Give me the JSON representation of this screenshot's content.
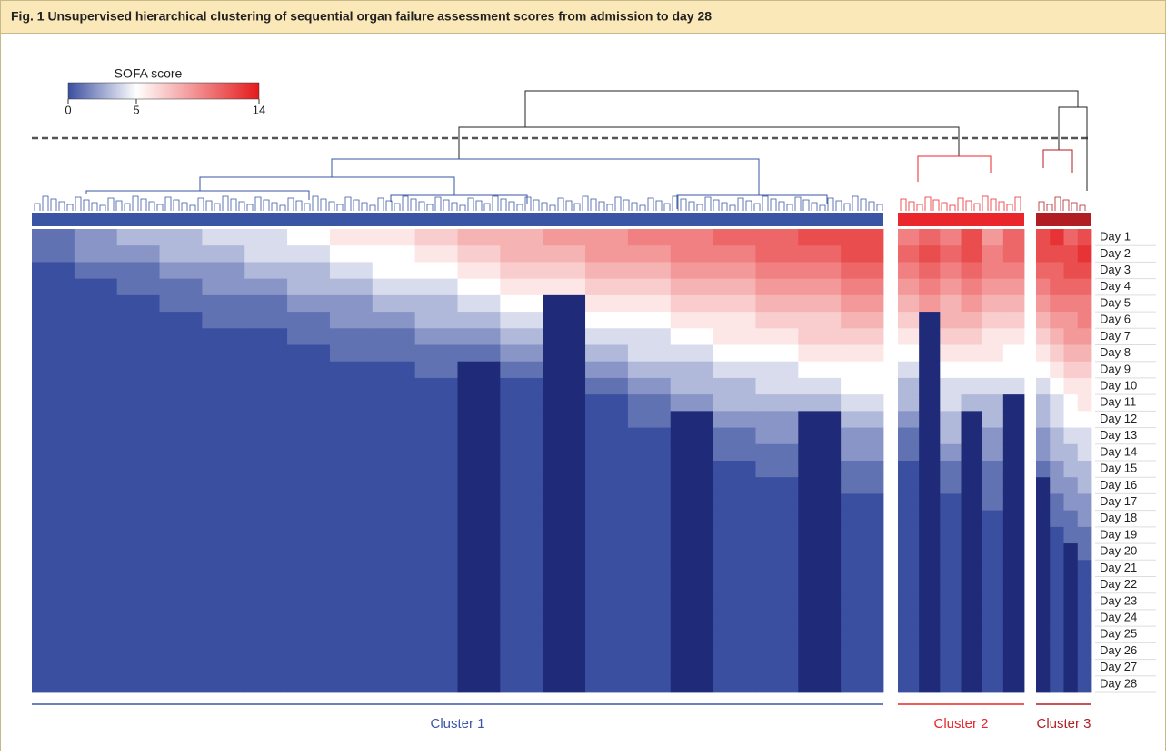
{
  "chart_data": {
    "type": "heatmap",
    "title": "Fig. 1 Unsupervised hierarchical clustering of sequential organ failure assessment scores from admission to day 28",
    "legend": {
      "title": "SOFA score",
      "range": [
        0,
        14
      ],
      "ticks": [
        0,
        5,
        14
      ],
      "colors": [
        "#3a4fa0",
        "#ffffff",
        "#e41a1c"
      ]
    },
    "missing_color": "#1f2a78",
    "rows": [
      "Day 1",
      "Day 2",
      "Day 3",
      "Day 4",
      "Day 5",
      "Day 6",
      "Day 7",
      "Day 8",
      "Day 9",
      "Day 10",
      "Day 11",
      "Day 12",
      "Day 13",
      "Day 14",
      "Day 15",
      "Day 16",
      "Day 17",
      "Day 18",
      "Day 19",
      "Day 20",
      "Day 21",
      "Day 22",
      "Day 23",
      "Day 24",
      "Day 25",
      "Day 26",
      "Day 27",
      "Day 28"
    ],
    "clusters": [
      {
        "name": "Cluster 1",
        "color": "#3a55a4",
        "columns": [
          [
            1,
            1,
            0,
            0,
            0,
            0,
            0,
            0,
            0,
            0,
            0,
            0,
            0,
            0,
            0,
            0,
            0,
            0,
            0,
            0,
            0,
            0,
            0,
            0,
            0,
            0,
            0,
            0
          ],
          [
            2,
            2,
            1,
            0,
            0,
            0,
            0,
            0,
            0,
            0,
            0,
            0,
            0,
            0,
            0,
            0,
            0,
            0,
            0,
            0,
            0,
            0,
            0,
            0,
            0,
            0,
            0,
            0
          ],
          [
            3,
            2,
            1,
            1,
            0,
            0,
            0,
            0,
            0,
            0,
            0,
            0,
            0,
            0,
            0,
            0,
            0,
            0,
            0,
            0,
            0,
            0,
            0,
            0,
            0,
            0,
            0,
            0
          ],
          [
            3,
            3,
            2,
            1,
            1,
            0,
            0,
            0,
            0,
            0,
            0,
            0,
            0,
            0,
            0,
            0,
            0,
            0,
            0,
            0,
            0,
            0,
            0,
            0,
            0,
            0,
            0,
            0
          ],
          [
            4,
            3,
            2,
            2,
            1,
            1,
            0,
            0,
            0,
            0,
            0,
            0,
            0,
            0,
            0,
            0,
            0,
            0,
            0,
            0,
            0,
            0,
            0,
            0,
            0,
            0,
            0,
            0
          ],
          [
            4,
            4,
            3,
            2,
            1,
            1,
            0,
            0,
            0,
            0,
            0,
            0,
            0,
            0,
            0,
            0,
            0,
            0,
            0,
            0,
            0,
            0,
            0,
            0,
            0,
            0,
            0,
            0
          ],
          [
            5,
            4,
            3,
            3,
            2,
            1,
            1,
            0,
            0,
            0,
            0,
            0,
            0,
            0,
            0,
            0,
            0,
            0,
            0,
            0,
            0,
            0,
            0,
            0,
            0,
            0,
            0,
            0
          ],
          [
            6,
            5,
            4,
            3,
            2,
            2,
            1,
            1,
            0,
            0,
            0,
            0,
            0,
            0,
            0,
            0,
            0,
            0,
            0,
            0,
            0,
            0,
            0,
            0,
            0,
            0,
            0,
            0
          ],
          [
            6,
            5,
            5,
            4,
            3,
            2,
            1,
            1,
            0,
            0,
            0,
            0,
            0,
            0,
            0,
            0,
            0,
            0,
            0,
            0,
            0,
            0,
            0,
            0,
            0,
            0,
            0,
            0
          ],
          [
            7,
            6,
            5,
            4,
            3,
            3,
            2,
            1,
            1,
            0,
            0,
            0,
            0,
            0,
            0,
            0,
            0,
            0,
            0,
            0,
            0,
            0,
            0,
            0,
            0,
            0,
            0,
            0
          ],
          [
            8,
            7,
            6,
            5,
            4,
            3,
            2,
            1,
            null,
            null,
            null,
            null,
            null,
            null,
            null,
            null,
            null,
            null,
            null,
            null,
            null,
            null,
            null,
            null,
            null,
            null,
            null,
            null
          ],
          [
            8,
            8,
            7,
            6,
            5,
            4,
            3,
            2,
            1,
            0,
            0,
            0,
            0,
            0,
            0,
            0,
            0,
            0,
            0,
            0,
            0,
            0,
            0,
            0,
            0,
            0,
            0,
            0
          ],
          [
            9,
            8,
            7,
            6,
            null,
            null,
            null,
            null,
            null,
            null,
            null,
            null,
            null,
            null,
            null,
            null,
            null,
            null,
            null,
            null,
            null,
            null,
            null,
            null,
            null,
            null,
            null,
            null
          ],
          [
            9,
            9,
            8,
            7,
            6,
            5,
            4,
            3,
            2,
            1,
            0,
            0,
            0,
            0,
            0,
            0,
            0,
            0,
            0,
            0,
            0,
            0,
            0,
            0,
            0,
            0,
            0,
            0
          ],
          [
            10,
            9,
            8,
            7,
            6,
            5,
            4,
            4,
            3,
            2,
            1,
            1,
            0,
            0,
            0,
            0,
            0,
            0,
            0,
            0,
            0,
            0,
            0,
            0,
            0,
            0,
            0,
            0
          ],
          [
            10,
            10,
            9,
            8,
            7,
            6,
            5,
            4,
            3,
            3,
            2,
            null,
            null,
            null,
            null,
            null,
            null,
            null,
            null,
            null,
            null,
            null,
            null,
            null,
            null,
            null,
            null,
            null
          ],
          [
            11,
            10,
            9,
            8,
            7,
            6,
            6,
            5,
            4,
            3,
            3,
            2,
            1,
            1,
            0,
            0,
            0,
            0,
            0,
            0,
            0,
            0,
            0,
            0,
            0,
            0,
            0,
            0
          ],
          [
            11,
            11,
            10,
            9,
            8,
            7,
            6,
            5,
            4,
            4,
            3,
            2,
            2,
            1,
            1,
            0,
            0,
            0,
            0,
            0,
            0,
            0,
            0,
            0,
            0,
            0,
            0,
            0
          ],
          [
            12,
            11,
            10,
            9,
            8,
            7,
            7,
            6,
            5,
            4,
            3,
            null,
            null,
            null,
            null,
            null,
            null,
            null,
            null,
            null,
            null,
            null,
            null,
            null,
            null,
            null,
            null,
            null
          ],
          [
            12,
            12,
            11,
            10,
            9,
            8,
            7,
            6,
            5,
            5,
            4,
            3,
            2,
            2,
            1,
            1,
            0,
            0,
            0,
            0,
            0,
            0,
            0,
            0,
            0,
            0,
            0,
            0
          ]
        ]
      },
      {
        "name": "Cluster 2",
        "color": "#e8262b",
        "columns": [
          [
            10,
            11,
            10,
            9,
            8,
            7,
            6,
            5,
            4,
            3,
            3,
            2,
            1,
            1,
            0,
            0,
            0,
            0,
            0,
            0,
            0,
            0,
            0,
            0,
            0,
            0,
            0,
            0
          ],
          [
            11,
            12,
            11,
            10,
            9,
            null,
            null,
            null,
            null,
            null,
            null,
            null,
            null,
            null,
            null,
            null,
            null,
            null,
            null,
            null,
            null,
            null,
            null,
            null,
            null,
            null,
            null,
            null
          ],
          [
            10,
            11,
            10,
            9,
            8,
            8,
            7,
            6,
            5,
            4,
            4,
            3,
            3,
            2,
            1,
            1,
            0,
            0,
            0,
            0,
            0,
            0,
            0,
            0,
            0,
            0,
            0,
            0
          ],
          [
            12,
            12,
            11,
            10,
            9,
            8,
            7,
            6,
            5,
            4,
            3,
            null,
            null,
            null,
            null,
            null,
            null,
            null,
            null,
            null,
            null,
            null,
            null,
            null,
            null,
            null,
            null,
            null
          ],
          [
            9,
            10,
            10,
            9,
            8,
            7,
            6,
            6,
            5,
            4,
            3,
            3,
            2,
            2,
            1,
            1,
            1,
            0,
            0,
            0,
            0,
            0,
            0,
            0,
            0,
            0,
            0,
            0
          ],
          [
            11,
            11,
            10,
            9,
            8,
            7,
            6,
            5,
            5,
            4,
            null,
            null,
            null,
            null,
            null,
            null,
            null,
            null,
            null,
            null,
            null,
            null,
            null,
            null,
            null,
            null,
            null,
            null
          ]
        ]
      },
      {
        "name": "Cluster 3",
        "color": "#b01e23",
        "columns": [
          [
            12,
            12,
            11,
            10,
            9,
            8,
            7,
            6,
            5,
            4,
            3,
            3,
            2,
            2,
            1,
            null,
            null,
            null,
            null,
            null,
            null,
            null,
            null,
            null,
            null,
            null,
            null,
            null
          ],
          [
            13,
            12,
            11,
            11,
            10,
            9,
            8,
            7,
            6,
            5,
            4,
            4,
            3,
            3,
            2,
            2,
            1,
            1,
            0,
            0,
            0,
            0,
            0,
            0,
            0,
            0,
            0,
            0
          ],
          [
            11,
            12,
            12,
            11,
            10,
            9,
            9,
            8,
            7,
            6,
            5,
            5,
            4,
            3,
            3,
            2,
            2,
            1,
            1,
            null,
            null,
            null,
            null,
            null,
            null,
            null,
            null,
            null
          ],
          [
            12,
            13,
            12,
            11,
            10,
            10,
            9,
            8,
            7,
            6,
            6,
            5,
            4,
            4,
            3,
            3,
            2,
            2,
            1,
            1,
            0,
            0,
            0,
            0,
            0,
            0,
            0,
            0
          ]
        ]
      }
    ]
  }
}
